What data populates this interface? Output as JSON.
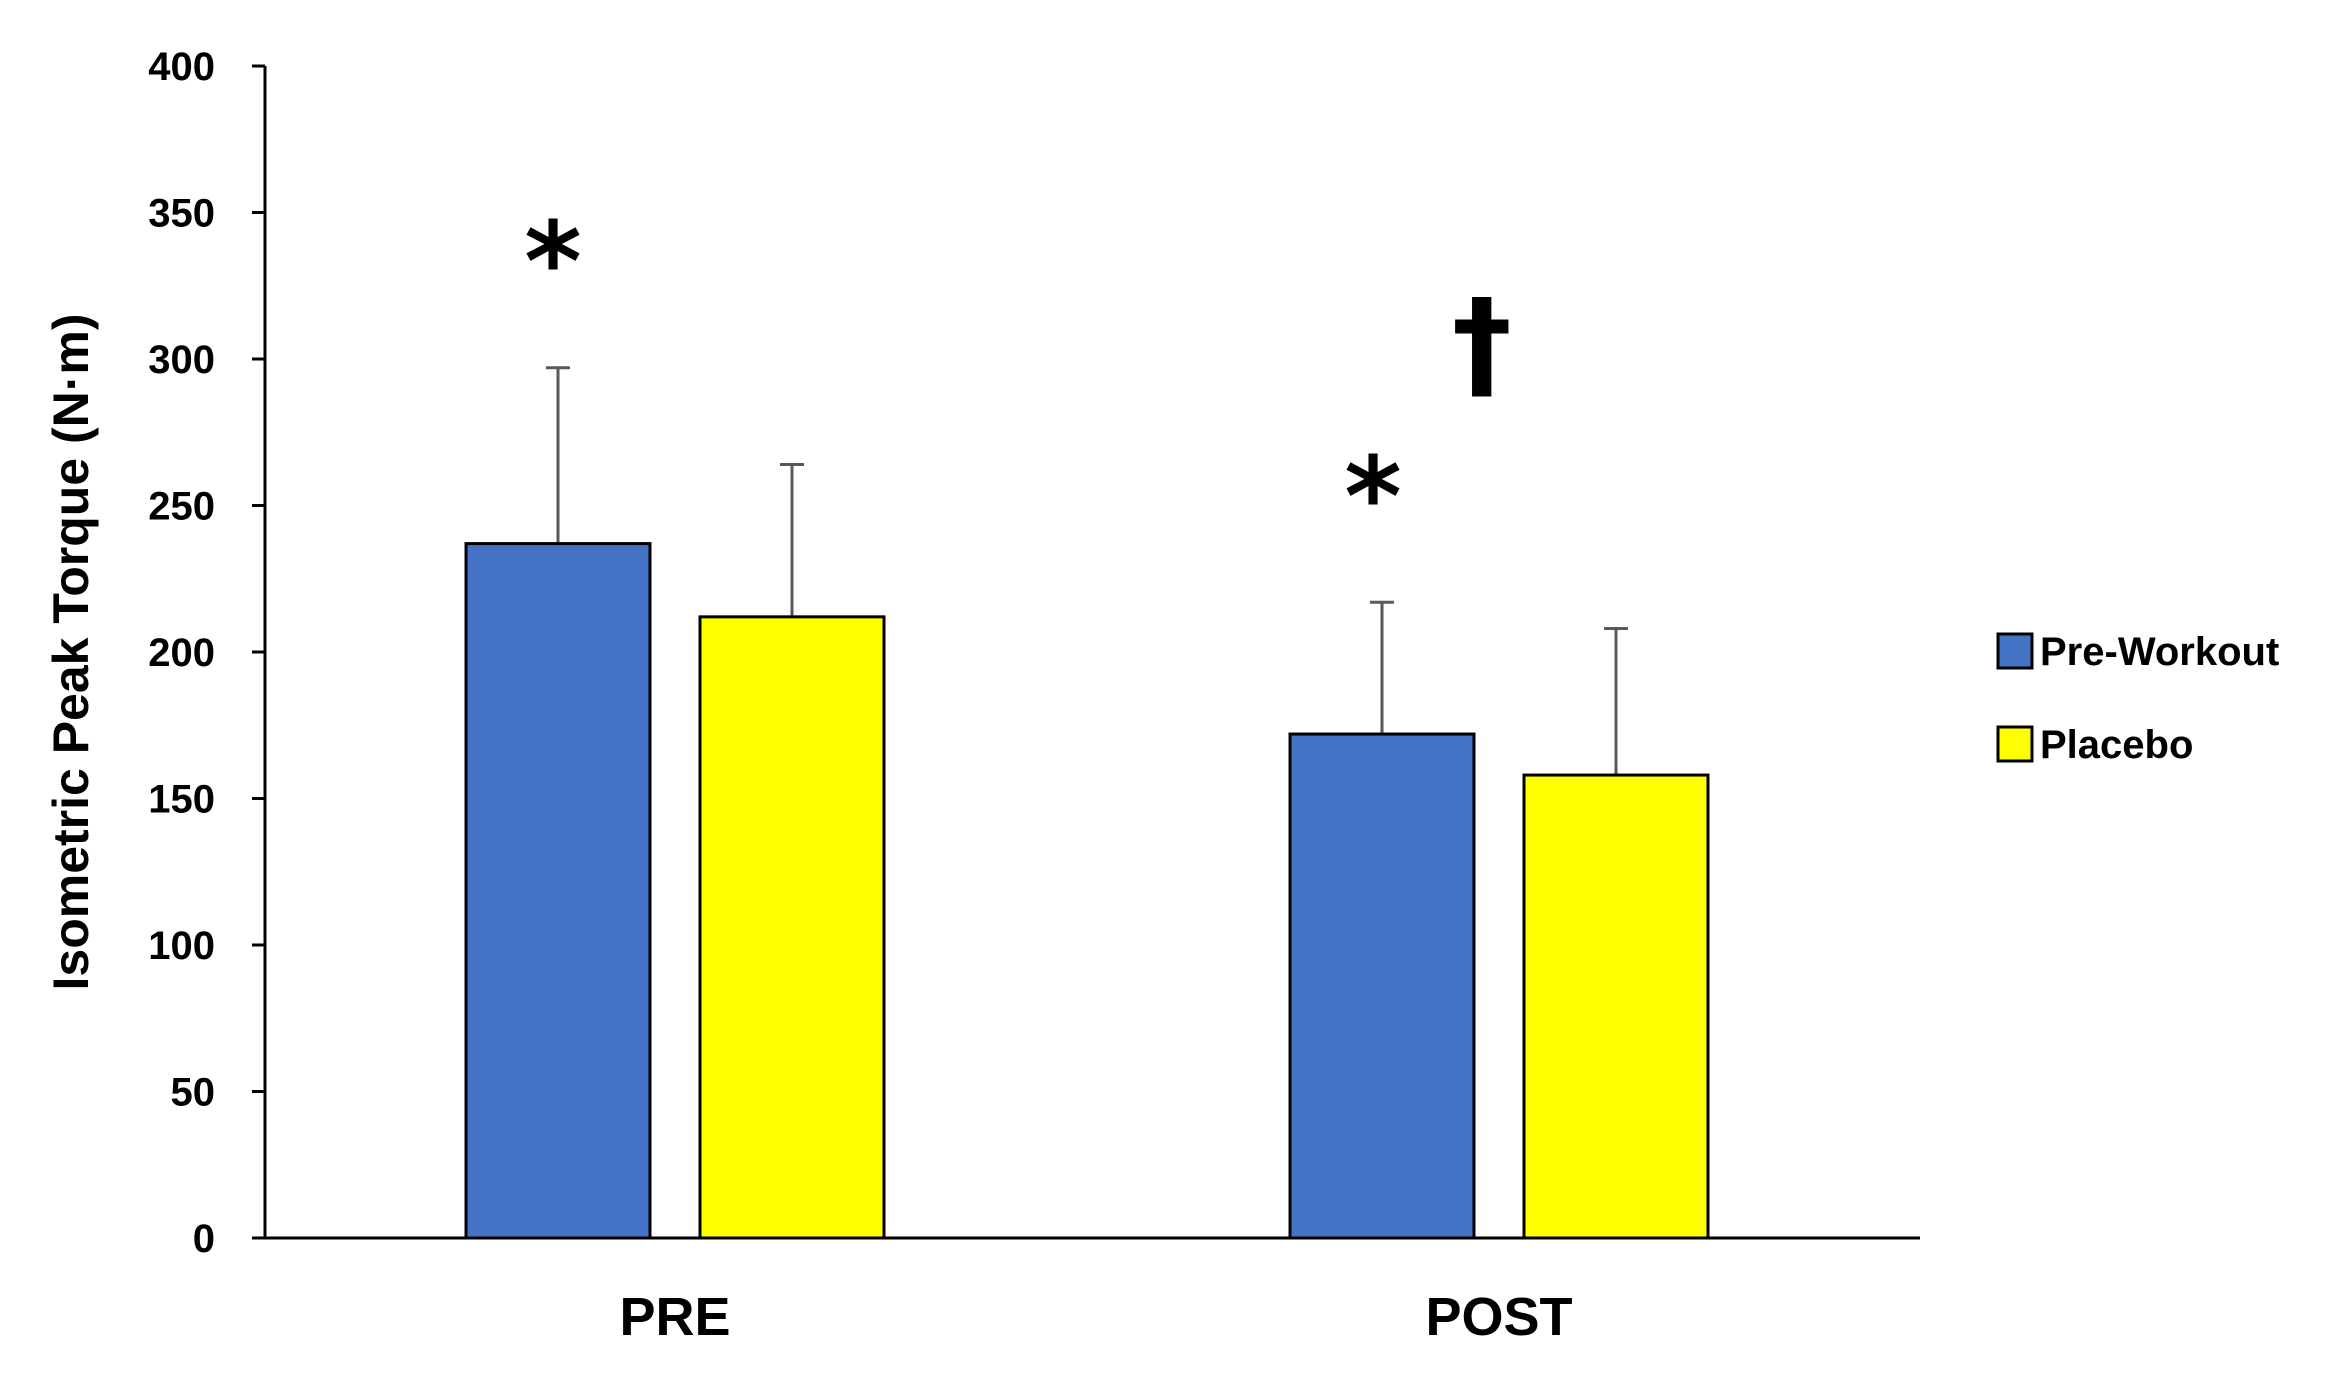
{
  "chart_data": {
    "type": "bar",
    "categories": [
      "PRE",
      "POST"
    ],
    "series": [
      {
        "name": "Pre-Workout",
        "values": [
          237,
          172
        ],
        "errors": [
          60,
          45
        ],
        "color": "#4472C4"
      },
      {
        "name": "Placebo",
        "values": [
          212,
          158
        ],
        "errors": [
          52,
          50
        ],
        "color": "#FFFF00"
      }
    ],
    "ylabel": "Isometric Peak Torque (N·m)",
    "xlabel": "",
    "ylim": [
      0,
      400
    ],
    "yticks": [
      "0",
      "50",
      "100",
      "150",
      "200",
      "250",
      "300",
      "350",
      "400"
    ],
    "grid": false,
    "legend_position": "right",
    "annotations": [
      {
        "text": "*",
        "category": "PRE",
        "series": "Pre-Workout"
      },
      {
        "text": "*",
        "category": "POST",
        "series": "Pre-Workout"
      },
      {
        "text": "†",
        "category": "POST",
        "series": "Pre-Workout"
      }
    ]
  }
}
